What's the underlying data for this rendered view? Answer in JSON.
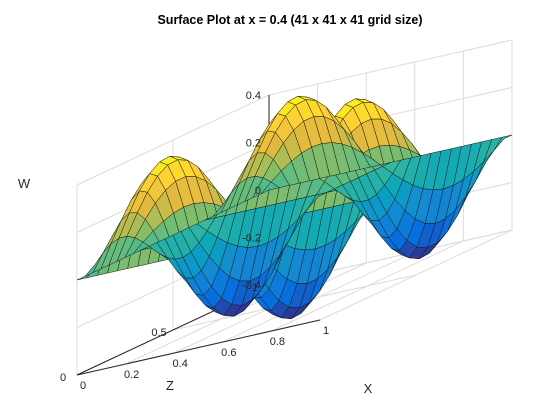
{
  "chart_data": {
    "type": "surface",
    "title": "Surface Plot at x = 0.4 (41 x 41 x 41 grid size)",
    "xlabel": "X",
    "ylabel": "Z",
    "zlabel": "W",
    "x_ticks": [
      "0",
      "0.2",
      "0.4",
      "0.6",
      "0.8",
      "1"
    ],
    "y_ticks": [
      "0",
      "0.5",
      "1"
    ],
    "z_ticks": [
      "-0.4",
      "-0.2",
      "0",
      "0.2",
      "0.4"
    ],
    "xlim": [
      0,
      1
    ],
    "ylim": [
      0,
      1
    ],
    "zlim": [
      -0.4,
      0.4
    ],
    "grid": true,
    "colormap": "parula",
    "surface_function": "W = 0.4 * sin(2*pi*X) * sin(3*pi*Z)",
    "mesh_cells": 24
  }
}
